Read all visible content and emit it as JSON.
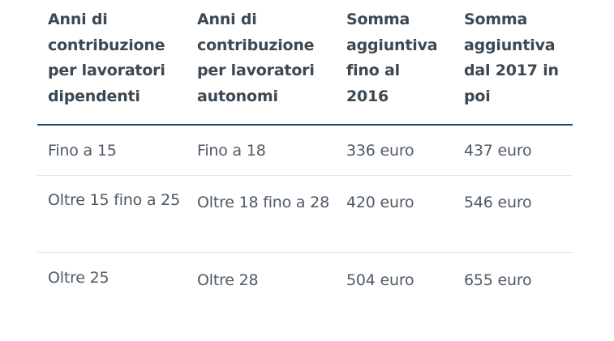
{
  "headers": [
    "Anni di contribuzione per lavoratori dipendenti",
    "Anni di contribuzione per lavoratori autonomi",
    "Somma aggiuntiva fino al 2016",
    "Somma aggiuntiva dal 2017 in poi"
  ],
  "rows": [
    [
      "Fino a 15",
      "Fino a 18",
      "336 euro",
      "437 euro"
    ],
    [
      "Oltre 15 fino a 25",
      "Oltre 18 fino a 28",
      "420 euro",
      "546 euro"
    ],
    [
      "Oltre 25",
      "Oltre 28",
      "504 euro",
      "655 euro"
    ]
  ],
  "colors": {
    "header_text": "#3c4852",
    "body_text": "#4e5a65",
    "header_rule": "#1a4a6a",
    "row_rule": "#e2e4e6"
  }
}
